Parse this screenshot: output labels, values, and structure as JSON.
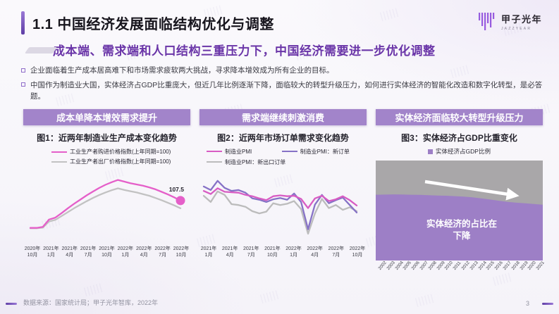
{
  "slide": {
    "title": "1.1 中国经济发展面临结构优化与调整",
    "subtitle": "成本端、需求端和人口结构三重压力下，中国经济需要进一步优化调整",
    "bullets": [
      "企业面临着生产成本居高难下和市场需求疲软两大挑战，寻求降本增效成为所有企业的目标。",
      "中国作为制造业大国，实体经济占GDP比重庞大，但近几年比例逐渐下降，面临较大的转型升级压力，如何进行实体经济的智能化改造和数字化转型，是必答题。"
    ],
    "source": "数据来源：国家统计局；甲子光年智库，2022年",
    "page_number": "3"
  },
  "logo": {
    "name": "甲子光年",
    "sub": "JAZZYEAR"
  },
  "panels": [
    {
      "header": "成本单降本增效需求提升"
    },
    {
      "header": "需求端继续刺激消费"
    },
    {
      "header": "实体经济面临较大转型升级压力"
    }
  ],
  "colors": {
    "accent_purple": "#6a35a8",
    "panel_header": "#a284ca",
    "title_bar": "#5f3ea6"
  },
  "chart_data": [
    {
      "type": "line",
      "title": "图1：近两年制造业生产成本变化趋势",
      "x": [
        "2020年10月",
        "2020年11月",
        "2020年12月",
        "2021年1月",
        "2021年2月",
        "2021年3月",
        "2021年4月",
        "2021年5月",
        "2021年6月",
        "2021年7月",
        "2021年8月",
        "2021年9月",
        "2021年10月",
        "2021年11月",
        "2021年12月",
        "2022年1月",
        "2022年2月",
        "2022年3月",
        "2022年4月",
        "2022年5月",
        "2022年6月",
        "2022年7月",
        "2022年8月",
        "2022年9月",
        "2022年10月"
      ],
      "tick_labels": [
        "2020年\n10月",
        "2021年\n1月",
        "2021年\n4月",
        "2021年\n7月",
        "2021年\n10月",
        "2022年\n1月",
        "2022年\n4月",
        "2022年\n7月",
        "2022年\n10月"
      ],
      "ylim": [
        95,
        116
      ],
      "pad": [
        8,
        14,
        4,
        10
      ],
      "series": [
        {
          "name": "工业生产者购进价格指数(上年同期=100)",
          "color": "#e55fc9",
          "values": [
            99.0,
            99.0,
            99.3,
            101.6,
            102.2,
            103.6,
            105.1,
            106.5,
            107.8,
            109.1,
            110.3,
            111.4,
            112.4,
            113.2,
            113.9,
            113.4,
            112.9,
            112.5,
            112.1,
            111.6,
            111.0,
            110.2,
            109.4,
            108.5,
            107.5
          ],
          "end_dot": true,
          "end_label": "107.5"
        },
        {
          "name": "工业生产者出厂价格指数(上年同期=100)",
          "color": "#c2c2c2",
          "values": [
            98.9,
            98.9,
            99.1,
            101.0,
            101.5,
            102.7,
            103.9,
            105.1,
            106.2,
            107.3,
            108.3,
            109.2,
            110.0,
            110.7,
            111.3,
            110.8,
            110.4,
            110.0,
            109.5,
            109.0,
            108.3,
            107.6,
            106.8,
            106.0,
            105.1
          ]
        }
      ]
    },
    {
      "type": "line",
      "title": "图2：近两年市场订单需求变化趋势",
      "x": [
        "2021年1月",
        "2021年2月",
        "2021年3月",
        "2021年4月",
        "2021年5月",
        "2021年6月",
        "2021年7月",
        "2021年8月",
        "2021年9月",
        "2021年10月",
        "2021年11月",
        "2021年12月",
        "2022年1月",
        "2022年2月",
        "2022年3月",
        "2022年4月",
        "2022年5月",
        "2022年6月",
        "2022年7月",
        "2022年8月",
        "2022年9月",
        "2022年10月",
        "2022年11月"
      ],
      "tick_labels": [
        "2021年\n1月",
        "2021年\n4月",
        "2021年\n7月",
        "2021年\n10月",
        "2022年\n1月",
        "2022年\n4月",
        "2022年\n7月",
        "2022年\n10月"
      ],
      "ylim": [
        40,
        55
      ],
      "pad": [
        10,
        14,
        4,
        6
      ],
      "series": [
        {
          "name": "制造业PMI",
          "color": "#d85cc3",
          "values": [
            51.3,
            50.6,
            51.9,
            51.1,
            51.0,
            50.9,
            50.4,
            50.1,
            49.6,
            49.2,
            50.1,
            50.3,
            50.1,
            50.2,
            49.5,
            47.4,
            49.6,
            50.2,
            49.0,
            49.4,
            50.1,
            49.2,
            48.0
          ]
        },
        {
          "name": "制造业PMI：新订单",
          "color": "#8672c6",
          "values": [
            52.3,
            51.5,
            53.6,
            52.0,
            51.3,
            51.5,
            50.9,
            49.6,
            49.3,
            48.8,
            49.4,
            49.7,
            49.3,
            50.7,
            48.8,
            42.6,
            48.2,
            50.4,
            48.5,
            49.2,
            49.8,
            48.1,
            46.4
          ]
        },
        {
          "name": "制造业PMI：新出口订单",
          "color": "#bcbcbc",
          "values": [
            50.2,
            48.8,
            51.2,
            50.4,
            48.3,
            48.1,
            47.7,
            46.7,
            46.2,
            46.6,
            48.5,
            48.1,
            48.4,
            49.0,
            47.2,
            41.6,
            46.2,
            49.5,
            47.4,
            48.1,
            47.0,
            47.6,
            46.7
          ]
        }
      ]
    },
    {
      "type": "area",
      "title": "图3：实体经济占GDP比重变化",
      "legend": "实体经济占GDP比例",
      "x": [
        "2002",
        "2003",
        "2004",
        "2005",
        "2006",
        "2007",
        "2008",
        "2009",
        "2010",
        "2011",
        "2012",
        "2013",
        "2014",
        "2015",
        "2016",
        "2017",
        "2018",
        "2019",
        "2020",
        "2021"
      ],
      "values": [
        65.8,
        65.9,
        66.1,
        66.0,
        65.8,
        65.6,
        65.3,
        65.0,
        64.8,
        64.4,
        63.9,
        63.2,
        62.2,
        61.0,
        59.8,
        58.6,
        57.8,
        57.2,
        56.5,
        55.8
      ],
      "ylim": [
        0,
        100
      ],
      "pad": [
        0,
        0,
        0,
        0
      ],
      "colors": {
        "area": "#9d7fc6",
        "bg": "#a9a7a9"
      },
      "annotation": "实体经济的占比在\n下降"
    }
  ]
}
